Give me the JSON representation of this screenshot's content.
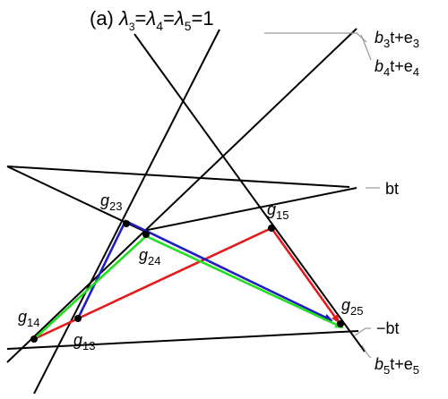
{
  "title": {
    "prefix": "(a) ",
    "symbol": "λ",
    "subs": [
      "3",
      "4",
      "5"
    ],
    "eq": "=",
    "value": "1"
  },
  "points": {
    "g23": {
      "base": "g",
      "sub": "23"
    },
    "g24": {
      "base": "g",
      "sub": "24"
    },
    "g15": {
      "base": "g",
      "sub": "15"
    },
    "g14": {
      "base": "g",
      "sub": "14"
    },
    "g13": {
      "base": "g",
      "sub": "13"
    },
    "g25": {
      "base": "g",
      "sub": "25"
    }
  },
  "line_labels": {
    "b3": {
      "pre": "b",
      "sub": "3",
      "mid": "t+e",
      "sub2": "3"
    },
    "b4": {
      "pre": "b",
      "sub": "4",
      "mid": "t+e",
      "sub2": "4"
    },
    "bt": {
      "text": "bt"
    },
    "neg_bt": {
      "text": "−bt"
    },
    "b5": {
      "pre": "b",
      "sub": "5",
      "mid": "t+e",
      "sub2": "5"
    }
  },
  "colors": {
    "line": "#000000",
    "leader": "#999999",
    "red_path": "#e41a1c",
    "blue_path": "#1f1fbf",
    "green_path": "#22dd22",
    "node": "#000000"
  }
}
